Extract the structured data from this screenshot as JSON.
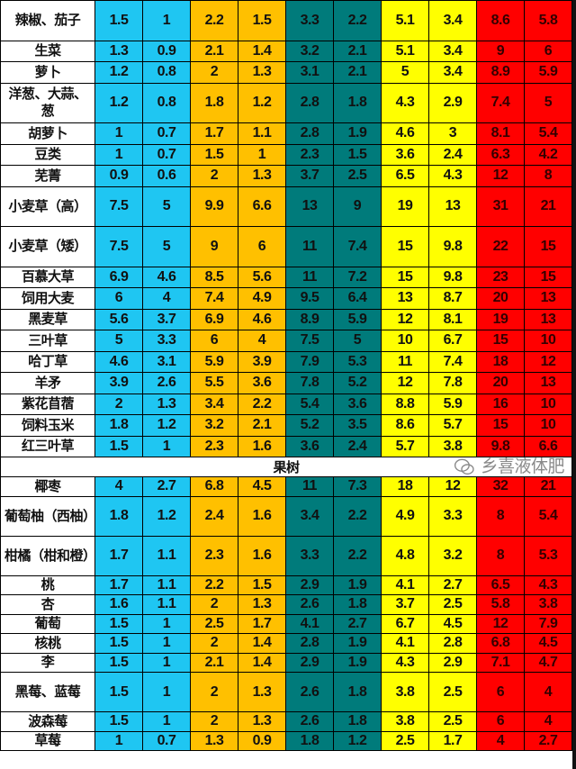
{
  "colors": {
    "cyan": "#1fc6f2",
    "orange": "#ffc000",
    "teal": "#007b7b",
    "yellow": "#ffff00",
    "red": "#ff0000"
  },
  "sections": [
    {
      "header": "",
      "rows": [
        {
          "name": "辣椒、茄子",
          "two_line": true,
          "values": [
            "1.5",
            "1",
            "2.2",
            "1.5",
            "3.3",
            "2.2",
            "5.1",
            "3.4",
            "8.6",
            "5.8"
          ]
        },
        {
          "name": "生菜",
          "values": [
            "1.3",
            "0.9",
            "2.1",
            "1.4",
            "3.2",
            "2.1",
            "5.1",
            "3.4",
            "9",
            "6"
          ]
        },
        {
          "name": "萝卜",
          "values": [
            "1.2",
            "0.8",
            "2",
            "1.3",
            "3.1",
            "2.1",
            "5",
            "3.4",
            "8.9",
            "5.9"
          ]
        },
        {
          "name": "洋葱、大蒜、葱",
          "two_line": true,
          "values": [
            "1.2",
            "0.8",
            "1.8",
            "1.2",
            "2.8",
            "1.8",
            "4.3",
            "2.9",
            "7.4",
            "5"
          ]
        },
        {
          "name": "胡萝卜",
          "values": [
            "1",
            "0.7",
            "1.7",
            "1.1",
            "2.8",
            "1.9",
            "4.6",
            "3",
            "8.1",
            "5.4"
          ]
        },
        {
          "name": "豆类",
          "values": [
            "1",
            "0.7",
            "1.5",
            "1",
            "2.3",
            "1.5",
            "3.6",
            "2.4",
            "6.3",
            "4.2"
          ]
        },
        {
          "name": "芜菁",
          "values": [
            "0.9",
            "0.6",
            "2",
            "1.3",
            "3.7",
            "2.5",
            "6.5",
            "4.3",
            "12",
            "8"
          ]
        },
        {
          "name": "小麦草（高）",
          "two_line": true,
          "values": [
            "7.5",
            "5",
            "9.9",
            "6.6",
            "13",
            "9",
            "19",
            "13",
            "31",
            "21"
          ]
        },
        {
          "name": "小麦草（矮）",
          "two_line": true,
          "values": [
            "7.5",
            "5",
            "9",
            "6",
            "11",
            "7.4",
            "15",
            "9.8",
            "22",
            "15"
          ]
        },
        {
          "name": "百慕大草",
          "values": [
            "6.9",
            "4.6",
            "8.5",
            "5.6",
            "11",
            "7.2",
            "15",
            "9.8",
            "23",
            "15"
          ]
        },
        {
          "name": "饲用大麦",
          "values": [
            "6",
            "4",
            "7.4",
            "4.9",
            "9.5",
            "6.4",
            "13",
            "8.7",
            "20",
            "13"
          ]
        },
        {
          "name": "黑麦草",
          "values": [
            "5.6",
            "3.7",
            "6.9",
            "4.6",
            "8.9",
            "5.9",
            "12",
            "8.1",
            "19",
            "13"
          ]
        },
        {
          "name": "三叶草",
          "values": [
            "5",
            "3.3",
            "6",
            "4",
            "7.5",
            "5",
            "10",
            "6.7",
            "15",
            "10"
          ]
        },
        {
          "name": "哈丁草",
          "values": [
            "4.6",
            "3.1",
            "5.9",
            "3.9",
            "7.9",
            "5.3",
            "11",
            "7.4",
            "18",
            "12"
          ]
        },
        {
          "name": "羊矛",
          "values": [
            "3.9",
            "2.6",
            "5.5",
            "3.6",
            "7.8",
            "5.2",
            "12",
            "7.8",
            "20",
            "13"
          ]
        },
        {
          "name": "紫花苜蓿",
          "values": [
            "2",
            "1.3",
            "3.4",
            "2.2",
            "5.4",
            "3.6",
            "8.8",
            "5.9",
            "16",
            "10"
          ]
        },
        {
          "name": "饲料玉米",
          "values": [
            "1.8",
            "1.2",
            "3.2",
            "2.1",
            "5.2",
            "3.5",
            "8.6",
            "5.7",
            "15",
            "10"
          ]
        },
        {
          "name": "红三叶草",
          "values": [
            "1.5",
            "1",
            "2.3",
            "1.6",
            "3.6",
            "2.4",
            "5.7",
            "3.8",
            "9.8",
            "6.6"
          ]
        }
      ]
    },
    {
      "header": "果树",
      "rows": [
        {
          "name": "椰枣",
          "values": [
            "4",
            "2.7",
            "6.8",
            "4.5",
            "11",
            "7.3",
            "18",
            "12",
            "32",
            "21"
          ]
        },
        {
          "name": "葡萄柚（西柚）",
          "two_line": true,
          "values": [
            "1.8",
            "1.2",
            "2.4",
            "1.6",
            "3.4",
            "2.2",
            "4.9",
            "3.3",
            "8",
            "5.4"
          ]
        },
        {
          "name": "柑橘（柑和橙）",
          "two_line": true,
          "values": [
            "1.7",
            "1.1",
            "2.3",
            "1.6",
            "3.3",
            "2.2",
            "4.8",
            "3.2",
            "8",
            "5.3"
          ]
        },
        {
          "name": "桃",
          "values": [
            "1.7",
            "1.1",
            "2.2",
            "1.5",
            "2.9",
            "1.9",
            "4.1",
            "2.7",
            "6.5",
            "4.3"
          ]
        },
        {
          "name": "杏",
          "values": [
            "1.6",
            "1.1",
            "2",
            "1.3",
            "2.6",
            "1.8",
            "3.7",
            "2.5",
            "5.8",
            "3.8"
          ]
        },
        {
          "name": "葡萄",
          "values": [
            "1.5",
            "1",
            "2.5",
            "1.7",
            "4.1",
            "2.7",
            "6.7",
            "4.5",
            "12",
            "7.9"
          ]
        },
        {
          "name": "核桃",
          "values": [
            "1.5",
            "1",
            "2",
            "1.4",
            "2.8",
            "1.9",
            "4.1",
            "2.8",
            "6.8",
            "4.5"
          ]
        },
        {
          "name": "李",
          "values": [
            "1.5",
            "1",
            "2.1",
            "1.4",
            "2.9",
            "1.9",
            "4.3",
            "2.9",
            "7.1",
            "4.7"
          ]
        },
        {
          "name": "黑莓、蓝莓",
          "two_line": true,
          "values": [
            "1.5",
            "1",
            "2",
            "1.3",
            "2.6",
            "1.8",
            "3.8",
            "2.5",
            "6",
            "4"
          ]
        },
        {
          "name": "波森莓",
          "values": [
            "1.5",
            "1",
            "2",
            "1.3",
            "2.6",
            "1.8",
            "3.8",
            "2.5",
            "6",
            "4"
          ]
        },
        {
          "name": "草莓",
          "values": [
            "1",
            "0.7",
            "1.3",
            "0.9",
            "1.8",
            "1.2",
            "2.5",
            "1.7",
            "4",
            "2.7"
          ]
        }
      ]
    }
  ],
  "watermark": {
    "icon": "wechat-icon",
    "text": "乡喜液体肥"
  }
}
